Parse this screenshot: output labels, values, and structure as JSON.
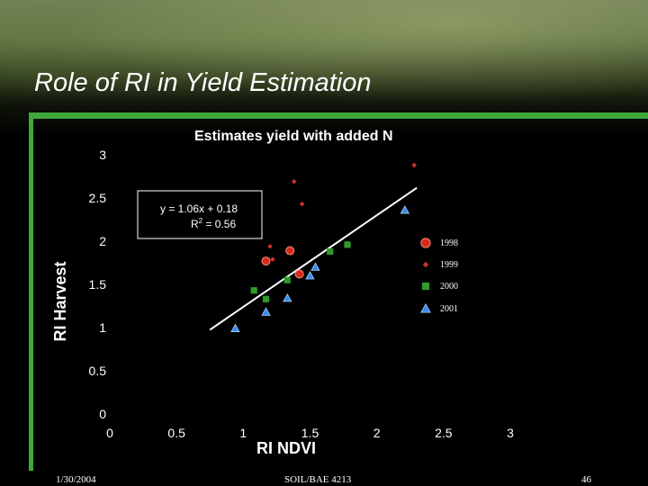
{
  "slide": {
    "title": "Role of RI in Yield Estimation",
    "footer_date": "1/30/2004",
    "footer_course": "SOIL/BAE 4213",
    "footer_page": "46"
  },
  "colors": {
    "accent_green": "#3fa83a",
    "series_1998": "#d42a1e",
    "series_1999": "#c8342a",
    "series_2000": "#2f9a2a",
    "series_2001": "#3a8ae8",
    "fit_line": "#ffffff"
  },
  "chart_data": {
    "type": "scatter",
    "title": "Estimates yield with added N",
    "xlabel": "RI NDVI",
    "ylabel": "RI Harvest",
    "xlim": [
      0,
      3
    ],
    "ylim": [
      0,
      3
    ],
    "x_ticks": [
      "0",
      "0.5",
      "1",
      "1.5",
      "2",
      "2.5",
      "3"
    ],
    "y_ticks": [
      "0",
      "0.5",
      "1",
      "1.5",
      "2",
      "2.5",
      "3"
    ],
    "grid": false,
    "legend_position": "right",
    "equation": {
      "line1": "y = 1.06x + 0.18",
      "r2_prefix": "R",
      "r2_exp": "2",
      "r2_suffix": " = 0.56"
    },
    "fit": {
      "slope": 1.06,
      "intercept": 0.18,
      "x_range": [
        0.75,
        2.3
      ]
    },
    "series": [
      {
        "name": "1998",
        "marker": "circle",
        "color": "#d42a1e",
        "points": [
          [
            1.17,
            1.77
          ],
          [
            1.35,
            1.89
          ],
          [
            1.42,
            1.62
          ]
        ]
      },
      {
        "name": "1999",
        "marker": "diamond",
        "color": "#c8342a",
        "points": [
          [
            2.28,
            2.88
          ],
          [
            1.38,
            2.69
          ],
          [
            1.44,
            2.43
          ],
          [
            1.2,
            1.94
          ],
          [
            1.22,
            1.79
          ]
        ]
      },
      {
        "name": "2000",
        "marker": "square",
        "color": "#2f9a2a",
        "points": [
          [
            1.78,
            1.96
          ],
          [
            1.65,
            1.88
          ],
          [
            1.33,
            1.55
          ],
          [
            1.08,
            1.43
          ],
          [
            1.17,
            1.33
          ]
        ]
      },
      {
        "name": "2001",
        "marker": "triangle",
        "color": "#3a8ae8",
        "points": [
          [
            2.21,
            2.36
          ],
          [
            1.54,
            1.7
          ],
          [
            1.5,
            1.6
          ],
          [
            1.33,
            1.34
          ],
          [
            1.17,
            1.18
          ],
          [
            0.94,
            0.99
          ]
        ]
      }
    ]
  }
}
